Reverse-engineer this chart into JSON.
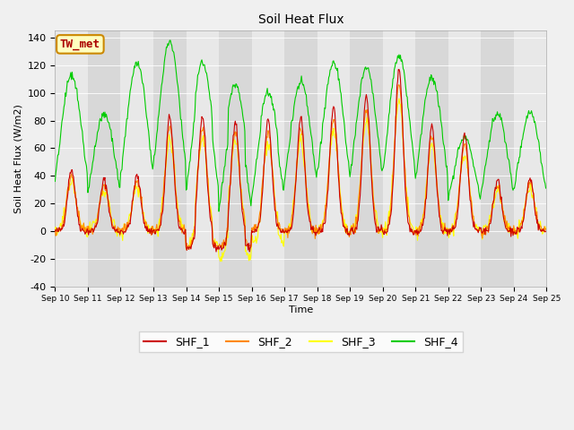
{
  "title": "Soil Heat Flux",
  "ylabel": "Soil Heat Flux (W/m2)",
  "xlabel": "Time",
  "ylim": [
    -40,
    145
  ],
  "legend_label": "TW_met",
  "series_labels": [
    "SHF_1",
    "SHF_2",
    "SHF_3",
    "SHF_4"
  ],
  "series_colors": [
    "#cc0000",
    "#ff8800",
    "#ffff00",
    "#00cc00"
  ],
  "background_color": "#f0f0f0",
  "stripe_colors": [
    "#e8e8e8",
    "#d8d8d8"
  ],
  "n_days": 15,
  "start_day": 10,
  "day_peaks_shf1": [
    45,
    37,
    40,
    83,
    83,
    80,
    80,
    82,
    90,
    99,
    118,
    76,
    70,
    37,
    38
  ],
  "day_peaks_shf4": [
    113,
    85,
    122,
    137,
    122,
    106,
    100,
    108,
    122,
    118,
    127,
    111,
    68,
    85,
    86
  ],
  "night_base": -20,
  "deep_trough_days": [
    4,
    5
  ],
  "deep_trough_extra": -12,
  "yticks": [
    -40,
    -20,
    0,
    20,
    40,
    60,
    80,
    100,
    120,
    140
  ]
}
